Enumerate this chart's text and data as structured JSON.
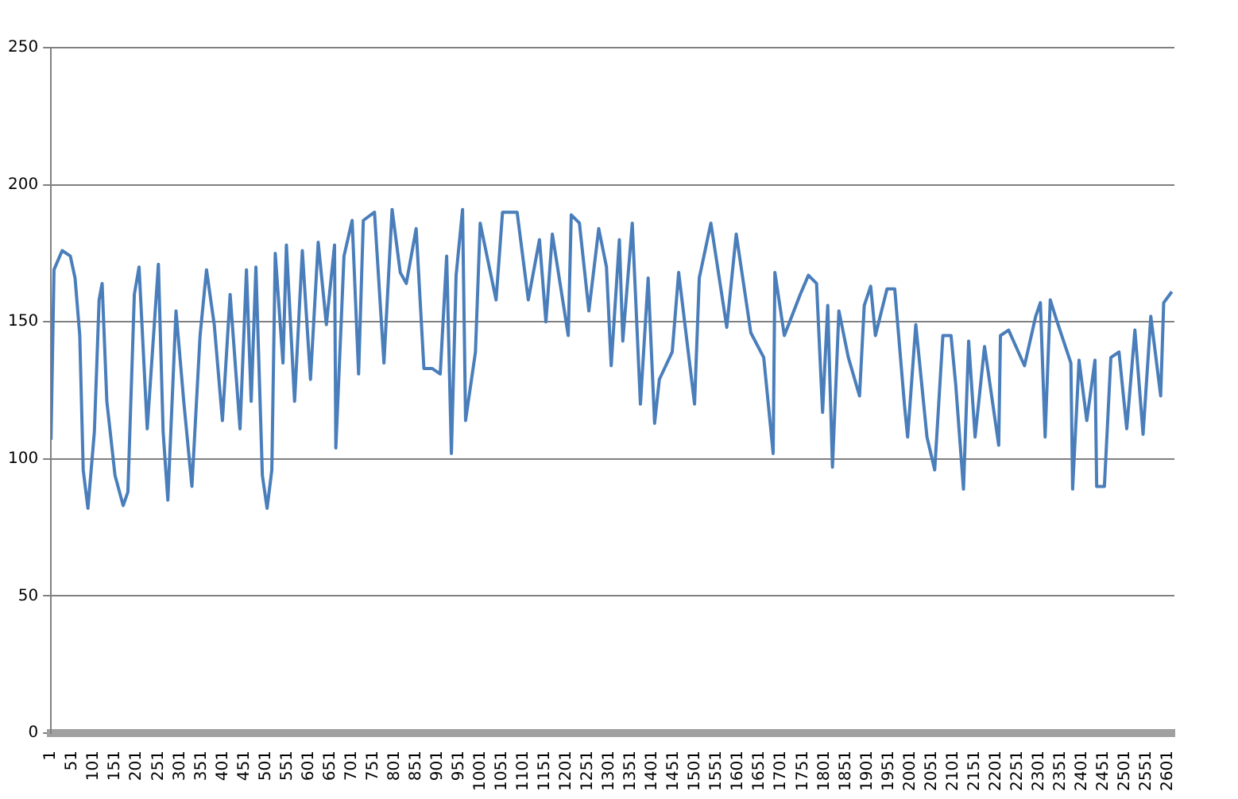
{
  "chart_data": {
    "type": "line",
    "xlim": [
      1,
      2616
    ],
    "xticks": [
      1,
      51,
      101,
      151,
      201,
      251,
      301,
      351,
      401,
      451,
      501,
      551,
      601,
      651,
      701,
      751,
      801,
      851,
      901,
      951,
      1001,
      1051,
      1101,
      1151,
      1201,
      1251,
      1301,
      1351,
      1401,
      1451,
      1501,
      1551,
      1601,
      1651,
      1701,
      1751,
      1801,
      1851,
      1901,
      1951,
      2001,
      2051,
      2101,
      2151,
      2201,
      2251,
      2301,
      2351,
      2401,
      2451,
      2501,
      2551,
      2601
    ],
    "ylim": [
      0,
      250
    ],
    "yticks": [
      0,
      50,
      100,
      150,
      200,
      250
    ],
    "grid": "y",
    "marker": "none",
    "line_style": "solid",
    "x": [
      1,
      8,
      27,
      46,
      57,
      68,
      76,
      87,
      102,
      113,
      120,
      131,
      150,
      169,
      180,
      195,
      206,
      225,
      251,
      262,
      273,
      292,
      310,
      329,
      348,
      363,
      381,
      400,
      418,
      441,
      456,
      467,
      478,
      493,
      504,
      515,
      523,
      541,
      549,
      568,
      586,
      605,
      623,
      642,
      661,
      664,
      683,
      702,
      717,
      728,
      754,
      776,
      795,
      814,
      828,
      851,
      869,
      888,
      907,
      922,
      933,
      944,
      959,
      966,
      989,
      1000,
      1037,
      1052,
      1086,
      1112,
      1138,
      1153,
      1168,
      1205,
      1212,
      1231,
      1253,
      1276,
      1294,
      1305,
      1324,
      1332,
      1354,
      1373,
      1391,
      1406,
      1417,
      1447,
      1462,
      1499,
      1510,
      1537,
      1574,
      1596,
      1630,
      1660,
      1682,
      1686,
      1708,
      1745,
      1764,
      1783,
      1797,
      1809,
      1820,
      1835,
      1857,
      1883,
      1894,
      1909,
      1920,
      1947,
      1965,
      1988,
      1995,
      2014,
      2040,
      2058,
      2077,
      2096,
      2107,
      2125,
      2137,
      2152,
      2174,
      2207,
      2211,
      2230,
      2267,
      2293,
      2304,
      2315,
      2327,
      2341,
      2375,
      2379,
      2394,
      2412,
      2431,
      2435,
      2453,
      2468,
      2487,
      2505,
      2524,
      2543,
      2561,
      2584,
      2591,
      2610
    ],
    "series": [
      {
        "color": "#4a7ebb",
        "values": [
          107,
          169,
          176,
          174,
          166,
          145,
          96,
          82,
          110,
          158,
          164,
          121,
          94,
          83,
          88,
          160,
          170,
          111,
          171,
          110,
          85,
          154,
          121,
          90,
          145,
          169,
          149,
          114,
          160,
          111,
          169,
          121,
          170,
          94,
          82,
          96,
          175,
          135,
          178,
          121,
          176,
          129,
          179,
          149,
          178,
          104,
          174,
          187,
          131,
          187,
          190,
          135,
          191,
          168,
          164,
          184,
          133,
          133,
          131,
          174,
          102,
          167,
          191,
          114,
          139,
          186,
          158,
          190,
          190,
          158,
          180,
          150,
          182,
          145,
          189,
          186,
          154,
          184,
          170,
          134,
          180,
          143,
          186,
          120,
          166,
          113,
          129,
          139,
          168,
          120,
          166,
          186,
          148,
          182,
          146,
          137,
          102,
          168,
          145,
          160,
          167,
          164,
          117,
          156,
          97,
          154,
          137,
          123,
          156,
          163,
          145,
          162,
          162,
          119,
          108,
          149,
          108,
          96,
          145,
          145,
          127,
          89,
          143,
          108,
          141,
          105,
          145,
          147,
          134,
          152,
          157,
          108,
          158,
          151,
          135,
          89,
          136,
          114,
          136,
          90,
          90,
          137,
          139,
          111,
          147,
          109,
          152,
          123,
          157,
          161
        ]
      }
    ]
  }
}
